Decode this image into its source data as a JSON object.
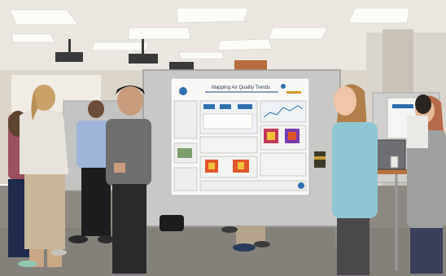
{
  "poster": {
    "title": "Mapping Air Quality Trends",
    "authors": "",
    "section_headings": []
  },
  "palette": {
    "ceiling": "#ece8e1",
    "wall": "#dcd6cc",
    "carpet": "#8f8a83",
    "board": "#c9c9c7",
    "poster_bg": "#f7f7f5",
    "poster_accent": "#2f6fb0",
    "heatmap_hot": "#e0572a",
    "heatmap_cool": "#f2c23b"
  }
}
